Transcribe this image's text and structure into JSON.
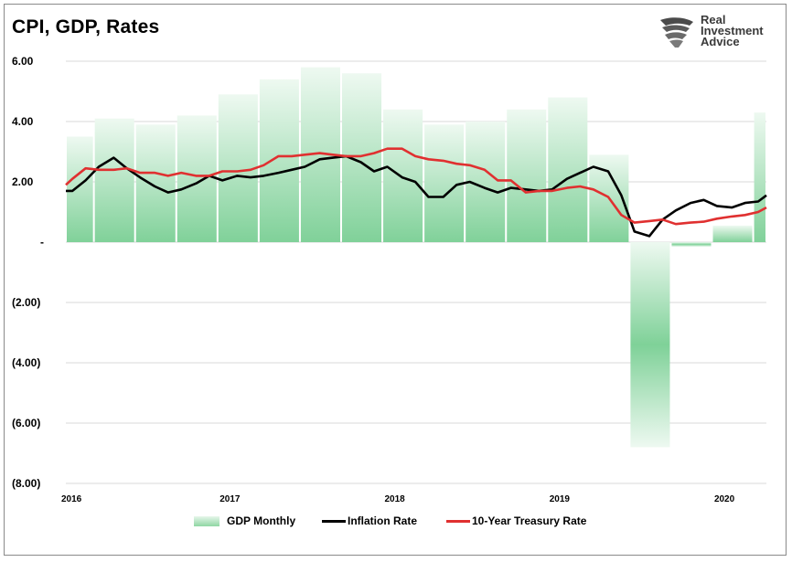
{
  "title": "CPI, GDP, Rates",
  "logo": {
    "line1": "Real",
    "line2": "Investment",
    "line3": "Advice",
    "icon": "eagle-head-icon"
  },
  "legend": {
    "gdp": "GDP Monthly",
    "inflation": "Inflation Rate",
    "treasury": "10-Year Treasury Rate"
  },
  "colors": {
    "gdp_light": "#eaf7ee",
    "gdp_dark": "#7fd198",
    "inflation": "#000000",
    "treasury": "#e03030",
    "grid": "#d9d9d9"
  },
  "chart_data": {
    "type": "bar+line",
    "title": "CPI, GDP, Rates",
    "ylim": [
      -8,
      6.5
    ],
    "yticks": [
      {
        "value": 6,
        "label": "6.00"
      },
      {
        "value": 4,
        "label": "4.00"
      },
      {
        "value": 2,
        "label": "2.00"
      },
      {
        "value": 0,
        "label": "-"
      },
      {
        "value": -2,
        "label": "(2.00)"
      },
      {
        "value": -4,
        "label": "(4.00)"
      },
      {
        "value": -6,
        "label": "(6.00)"
      },
      {
        "value": -8,
        "label": "(8.00)"
      }
    ],
    "x_ticks": [
      {
        "value": 2016.0,
        "label": "2016"
      },
      {
        "value": 2017.0,
        "label": "2017"
      },
      {
        "value": 2018.0,
        "label": "2018"
      },
      {
        "value": 2019.0,
        "label": "2019"
      },
      {
        "value": 2020.0,
        "label": "2020"
      }
    ],
    "xlim": [
      2016.0,
      2020.25
    ],
    "grid": true,
    "gdp_bars": [
      {
        "start": 2016.0,
        "end": 2016.17,
        "value": 3.5
      },
      {
        "start": 2016.17,
        "end": 2016.42,
        "value": 4.1
      },
      {
        "start": 2016.42,
        "end": 2016.67,
        "value": 3.9
      },
      {
        "start": 2016.67,
        "end": 2016.92,
        "value": 4.2
      },
      {
        "start": 2016.92,
        "end": 2017.17,
        "value": 4.9
      },
      {
        "start": 2017.17,
        "end": 2017.42,
        "value": 5.4
      },
      {
        "start": 2017.42,
        "end": 2017.67,
        "value": 5.8
      },
      {
        "start": 2017.67,
        "end": 2017.92,
        "value": 5.6
      },
      {
        "start": 2017.92,
        "end": 2018.17,
        "value": 4.4
      },
      {
        "start": 2018.17,
        "end": 2018.42,
        "value": 3.9
      },
      {
        "start": 2018.42,
        "end": 2018.67,
        "value": 4.0
      },
      {
        "start": 2018.67,
        "end": 2018.92,
        "value": 4.4
      },
      {
        "start": 2018.92,
        "end": 2019.17,
        "value": 4.8
      },
      {
        "start": 2019.17,
        "end": 2019.42,
        "value": 2.9
      },
      {
        "start": 2019.42,
        "end": 2019.67,
        "value": -6.8
      },
      {
        "start": 2019.67,
        "end": 2019.92,
        "value": -0.15
      },
      {
        "start": 2019.92,
        "end": 2020.17,
        "value": 0.55
      },
      {
        "start": 2020.17,
        "end": 2020.25,
        "value": 4.3
      }
    ],
    "series": [
      {
        "name": "Inflation Rate",
        "x": [
          2016.0,
          2016.04,
          2016.12,
          2016.2,
          2016.29,
          2016.37,
          2016.45,
          2016.54,
          2016.62,
          2016.7,
          2016.79,
          2016.87,
          2016.95,
          2017.04,
          2017.12,
          2017.2,
          2017.29,
          2017.37,
          2017.45,
          2017.54,
          2017.62,
          2017.7,
          2017.79,
          2017.87,
          2017.95,
          2018.04,
          2018.12,
          2018.2,
          2018.29,
          2018.37,
          2018.45,
          2018.54,
          2018.62,
          2018.7,
          2018.79,
          2018.87,
          2018.95,
          2019.04,
          2019.12,
          2019.2,
          2019.29,
          2019.37,
          2019.45,
          2019.54,
          2019.62,
          2019.7,
          2019.79,
          2019.87,
          2019.95,
          2020.04,
          2020.12,
          2020.2,
          2020.25
        ],
        "y": [
          1.7,
          1.7,
          2.05,
          2.5,
          2.8,
          2.45,
          2.15,
          1.85,
          1.65,
          1.75,
          1.95,
          2.2,
          2.05,
          2.2,
          2.15,
          2.2,
          2.3,
          2.4,
          2.5,
          2.75,
          2.8,
          2.85,
          2.65,
          2.35,
          2.5,
          2.15,
          2.0,
          1.5,
          1.5,
          1.9,
          2.0,
          1.8,
          1.65,
          1.8,
          1.75,
          1.7,
          1.75,
          2.1,
          2.3,
          2.5,
          2.35,
          1.55,
          0.35,
          0.2,
          0.75,
          1.05,
          1.3,
          1.4,
          1.2,
          1.15,
          1.3,
          1.35,
          1.55
        ]
      },
      {
        "name": "10-Year Treasury Rate",
        "x": [
          2016.0,
          2016.04,
          2016.12,
          2016.2,
          2016.29,
          2016.37,
          2016.45,
          2016.54,
          2016.62,
          2016.7,
          2016.79,
          2016.87,
          2016.95,
          2017.04,
          2017.12,
          2017.2,
          2017.29,
          2017.37,
          2017.45,
          2017.54,
          2017.62,
          2017.7,
          2017.79,
          2017.87,
          2017.95,
          2018.04,
          2018.12,
          2018.2,
          2018.29,
          2018.37,
          2018.45,
          2018.54,
          2018.62,
          2018.7,
          2018.79,
          2018.87,
          2018.95,
          2019.04,
          2019.12,
          2019.2,
          2019.29,
          2019.37,
          2019.45,
          2019.54,
          2019.62,
          2019.7,
          2019.79,
          2019.87,
          2019.95,
          2020.04,
          2020.12,
          2020.2,
          2020.25
        ],
        "y": [
          1.9,
          2.1,
          2.45,
          2.4,
          2.4,
          2.45,
          2.3,
          2.3,
          2.2,
          2.3,
          2.2,
          2.2,
          2.35,
          2.35,
          2.4,
          2.55,
          2.85,
          2.85,
          2.9,
          2.95,
          2.9,
          2.85,
          2.85,
          2.95,
          3.1,
          3.1,
          2.85,
          2.75,
          2.7,
          2.6,
          2.55,
          2.4,
          2.05,
          2.05,
          1.65,
          1.7,
          1.7,
          1.8,
          1.85,
          1.75,
          1.5,
          0.9,
          0.65,
          0.7,
          0.75,
          0.6,
          0.65,
          0.68,
          0.78,
          0.85,
          0.9,
          1.0,
          1.15
        ]
      }
    ]
  }
}
